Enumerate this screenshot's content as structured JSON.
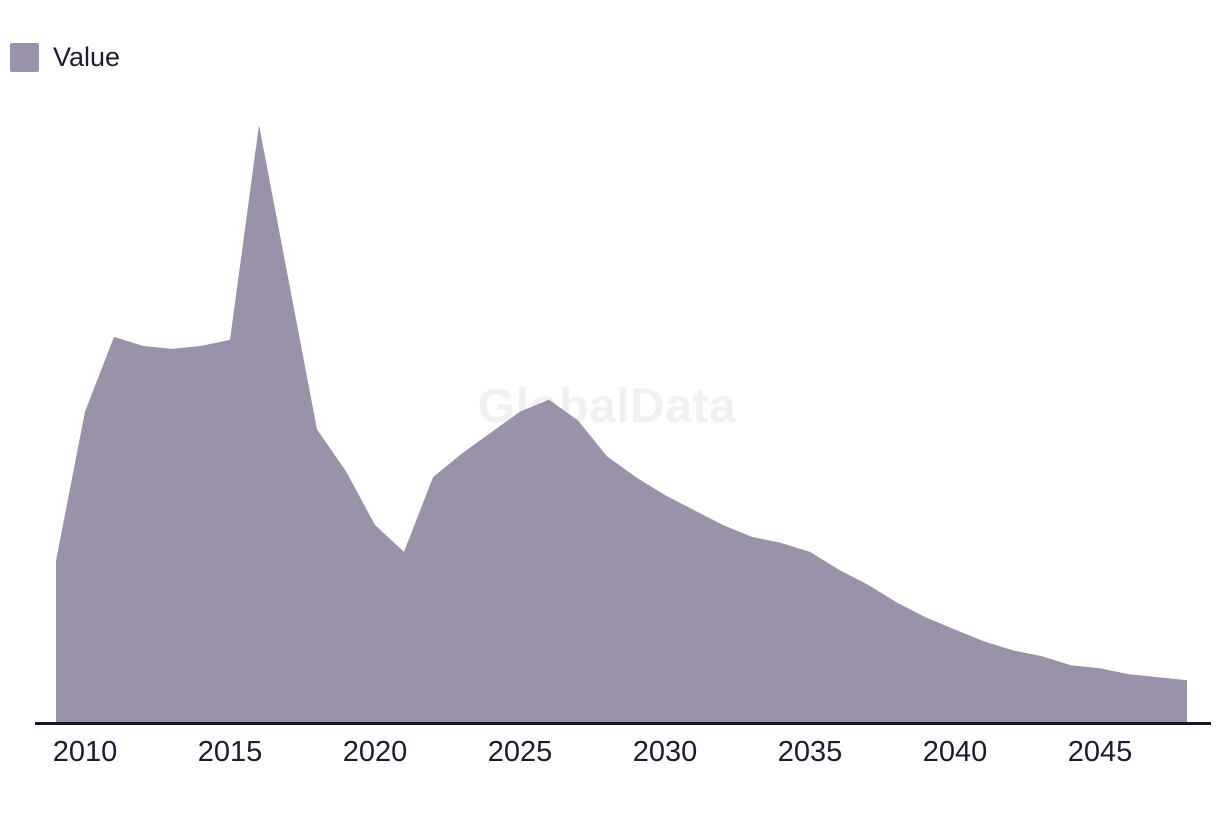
{
  "watermark": "GlobalData",
  "legend": {
    "items": [
      {
        "label": "Value",
        "color": "#9A92A8"
      }
    ]
  },
  "colors": {
    "area": "#9A92A8",
    "axis_line": "#16162d",
    "tick_text": "#1b1b32",
    "watermark": "#f1f1f1",
    "background": "#ffffff"
  },
  "chart_data": {
    "type": "area",
    "title": "",
    "xlabel": "",
    "ylabel": "",
    "legend_position": "top-left",
    "grid": false,
    "y_axis_visible": false,
    "units_note": "No y-axis shown; values are relative units scaled so the 2016 peak = 100",
    "xlim": [
      2009,
      2048
    ],
    "ylim": [
      0,
      108
    ],
    "x_tick_labels": [
      "2010",
      "2015",
      "2020",
      "2025",
      "2030",
      "2035",
      "2040",
      "2045"
    ],
    "series": [
      {
        "name": "Value",
        "color": "#9A92A8",
        "x": [
          2009,
          2010,
          2011,
          2012,
          2013,
          2014,
          2015,
          2016,
          2017,
          2018,
          2019,
          2020,
          2021,
          2022,
          2023,
          2024,
          2025,
          2026,
          2027,
          2028,
          2029,
          2030,
          2031,
          2032,
          2033,
          2034,
          2035,
          2036,
          2037,
          2038,
          2039,
          2040,
          2041,
          2042,
          2043,
          2044,
          2045,
          2046,
          2047,
          2048
        ],
        "values": [
          27,
          52,
          64.5,
          63,
          62.5,
          63,
          64,
          100,
          74.5,
          49,
          42,
          33,
          28.5,
          41,
          45,
          48.5,
          52,
          54,
          50.5,
          44.5,
          41,
          38,
          35.5,
          33,
          31,
          30,
          28.5,
          25.5,
          23,
          20,
          17.5,
          15.5,
          13.5,
          12,
          11,
          9.5,
          9,
          8,
          7.5,
          7
        ]
      }
    ]
  }
}
